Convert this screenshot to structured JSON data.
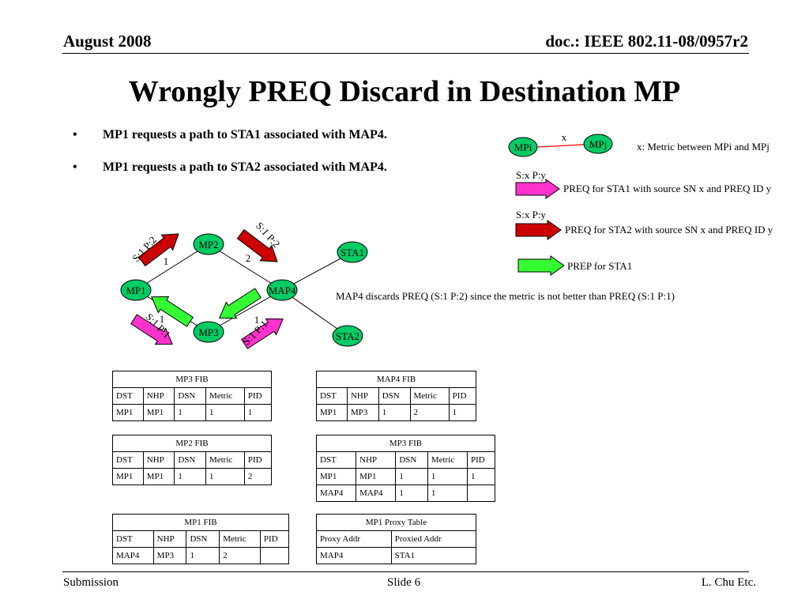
{
  "header": {
    "left": "August 2008",
    "right": "doc.: IEEE 802.11-08/0957r2"
  },
  "title": "Wrongly PREQ Discard in Destination MP",
  "bullets": [
    "MP1 requests a path to STA1 associated with MAP4.",
    "MP1 requests a path to STA2 associated with MAP4."
  ],
  "bullet_symbol": "•",
  "legend": {
    "node_i": "MPi",
    "node_j": "MPj",
    "link_label": "x",
    "metric_text": "x:  Metric between MPi  and MPj",
    "arrow1_tag": "S:x P:y",
    "arrow1_text": "PREQ  for STA1 with source SN x and PREQ ID y",
    "arrow2_tag": "S:x P:y",
    "arrow2_text": "PREQ  for STA2 with source SN x and PREQ ID y",
    "arrow3_text": "PREP  for STA1"
  },
  "diagram": {
    "nodes": {
      "mp1": "MP1",
      "mp2": "MP2",
      "mp3": "MP3",
      "map4": "MAP4",
      "sta1": "STA1",
      "sta2": "STA2"
    },
    "link_metrics": {
      "mp1_mp2": "1",
      "mp2_map4": "2",
      "mp1_mp3": "1",
      "mp3_map4": "1"
    },
    "arrow_labels": {
      "mp1_mp2": "S:1 P:2",
      "mp2_map4": "S:1 P:2",
      "mp1_mp3": "S:1 P:1",
      "mp3_map4": "S:1 P:1"
    },
    "note": "MAP4 discards PREQ (S:1  P:2) since the metric is not better than PREQ (S:1 P:1)"
  },
  "colors": {
    "node_fill": "#00cc66",
    "link_red": "#ff0000",
    "preq_sta1": "#ff33cc",
    "preq_sta2": "#cc0000",
    "prep": "#33ff33"
  },
  "tables": {
    "mp3_fib_a": {
      "caption": "MP3 FIB",
      "headers": [
        "DST",
        "NHP",
        "DSN",
        "Metric",
        "PID"
      ],
      "rows": [
        [
          "MP1",
          "MP1",
          "1",
          "1",
          "1"
        ]
      ]
    },
    "map4_fib": {
      "caption": "MAP4 FIB",
      "headers": [
        "DST",
        "NHP",
        "DSN",
        "Metric",
        "PID"
      ],
      "rows": [
        [
          "MP1",
          "MP3",
          "1",
          "2",
          "1"
        ]
      ]
    },
    "mp2_fib": {
      "caption": "MP2 FIB",
      "headers": [
        "DST",
        "NHP",
        "DSN",
        "Metric",
        "PID"
      ],
      "rows": [
        [
          "MP1",
          "MP1",
          "1",
          "1",
          "2"
        ]
      ]
    },
    "mp3_fib_b": {
      "caption": "MP3 FIB",
      "headers": [
        "DST",
        "NHP",
        "DSN",
        "Metric",
        "PID"
      ],
      "rows": [
        [
          "MP1",
          "MP1",
          "1",
          "1",
          "1"
        ],
        [
          "MAP4",
          "MAP4",
          "1",
          "1",
          ""
        ]
      ]
    },
    "mp1_fib": {
      "caption": "MP1 FIB",
      "headers": [
        "DST",
        "NHP",
        "DSN",
        "Metric",
        "PID"
      ],
      "rows": [
        [
          "MAP4",
          "MP3",
          "1",
          "2",
          ""
        ]
      ]
    },
    "mp1_proxy": {
      "caption": "MP1 Proxy Table",
      "headers": [
        "Proxy Addr",
        "Proxied Addr"
      ],
      "rows": [
        [
          "MAP4",
          "STA1"
        ]
      ]
    }
  },
  "footer": {
    "left": "Submission",
    "center": "Slide 6",
    "right": "L. Chu Etc."
  }
}
